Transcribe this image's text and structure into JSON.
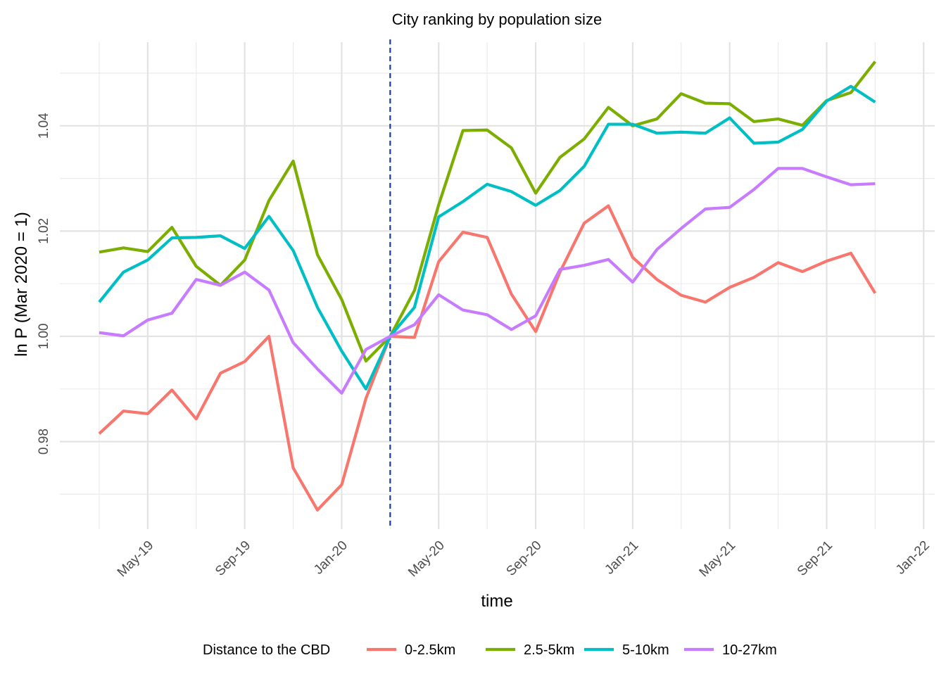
{
  "chart_data": {
    "type": "line",
    "title": "City ranking by population size",
    "xlabel": "time",
    "ylabel": "ln P (Mar 2020 = 1)",
    "x_tick_labels": [
      "May-19",
      "Sep-19",
      "Jan-20",
      "May-20",
      "Sep-20",
      "Jan-21",
      "May-21",
      "Sep-21",
      "Jan-22"
    ],
    "y_ticks": [
      0.98,
      1.0,
      1.02,
      1.04
    ],
    "y_tick_labels": [
      "0.98",
      "1.00",
      "1.02",
      "1.04"
    ],
    "ylim": [
      0.963,
      1.058
    ],
    "xlim": [
      "2019-02",
      "2022-01"
    ],
    "reference_line": {
      "x": "2020-03",
      "style": "dashed",
      "color": "#1f3a93"
    },
    "x": [
      "2019-03",
      "2019-04",
      "2019-05",
      "2019-06",
      "2019-07",
      "2019-08",
      "2019-09",
      "2019-10",
      "2019-11",
      "2019-12",
      "2020-01",
      "2020-02",
      "2020-03",
      "2020-04",
      "2020-05",
      "2020-06",
      "2020-07",
      "2020-08",
      "2020-09",
      "2020-10",
      "2020-11",
      "2020-12",
      "2021-01",
      "2021-02",
      "2021-03",
      "2021-04",
      "2021-05",
      "2021-06",
      "2021-07",
      "2021-08",
      "2021-09",
      "2021-10",
      "2021-11"
    ],
    "series": [
      {
        "name": "0-2.5km",
        "color": "#f8766d",
        "values": [
          0.9815,
          0.9858,
          0.9853,
          0.9898,
          0.9843,
          0.993,
          0.9952,
          1.0,
          0.975,
          0.967,
          0.9718,
          0.9882,
          1.0,
          0.9998,
          1.0142,
          1.0198,
          1.0188,
          1.008,
          1.0009,
          1.0122,
          1.0215,
          1.0248,
          1.015,
          1.0108,
          1.0078,
          1.0065,
          1.0093,
          1.0112,
          1.014,
          1.0123,
          1.0143,
          1.0158,
          1.0082
        ]
      },
      {
        "name": "2.5-5km",
        "color": "#7cae00",
        "values": [
          1.016,
          1.0168,
          1.0161,
          1.0207,
          1.0133,
          1.0097,
          1.0145,
          1.0258,
          1.0333,
          1.0155,
          1.007,
          0.9953,
          1.0,
          1.0087,
          1.025,
          1.0391,
          1.0392,
          1.0358,
          1.0272,
          1.034,
          1.0375,
          1.0435,
          1.04,
          1.0413,
          1.0461,
          1.0443,
          1.0442,
          1.0408,
          1.0413,
          1.0401,
          1.0448,
          1.0463,
          1.0522
        ]
      },
      {
        "name": "5-10km",
        "color": "#00bfc4",
        "values": [
          1.0065,
          1.0122,
          1.0145,
          1.0187,
          1.0188,
          1.0191,
          1.0167,
          1.0228,
          1.0163,
          1.0055,
          0.9972,
          0.99,
          1.0,
          1.0055,
          1.0227,
          1.0256,
          1.0289,
          1.0275,
          1.0249,
          1.0277,
          1.0323,
          1.0403,
          1.0403,
          1.0386,
          1.0388,
          1.0386,
          1.0415,
          1.0367,
          1.0369,
          1.0393,
          1.0447,
          1.0475,
          1.0445
        ]
      },
      {
        "name": "10-27km",
        "color": "#c77cff",
        "values": [
          1.0007,
          1.0001,
          1.0031,
          1.0044,
          1.0108,
          1.0097,
          1.0122,
          1.0088,
          0.9988,
          0.9938,
          0.9892,
          0.9975,
          1.0,
          1.0022,
          1.0079,
          1.005,
          1.0041,
          1.0013,
          1.0039,
          1.0127,
          1.0135,
          1.0146,
          1.0103,
          1.0165,
          1.0205,
          1.0242,
          1.0245,
          1.0279,
          1.0319,
          1.0319,
          1.0303,
          1.0288,
          1.029
        ]
      }
    ],
    "legend": {
      "title": "Distance to the CBD",
      "position": "bottom",
      "entries": [
        "0-2.5km",
        "2.5-5km",
        "5-10km",
        "10-27km"
      ]
    },
    "grid": true
  }
}
